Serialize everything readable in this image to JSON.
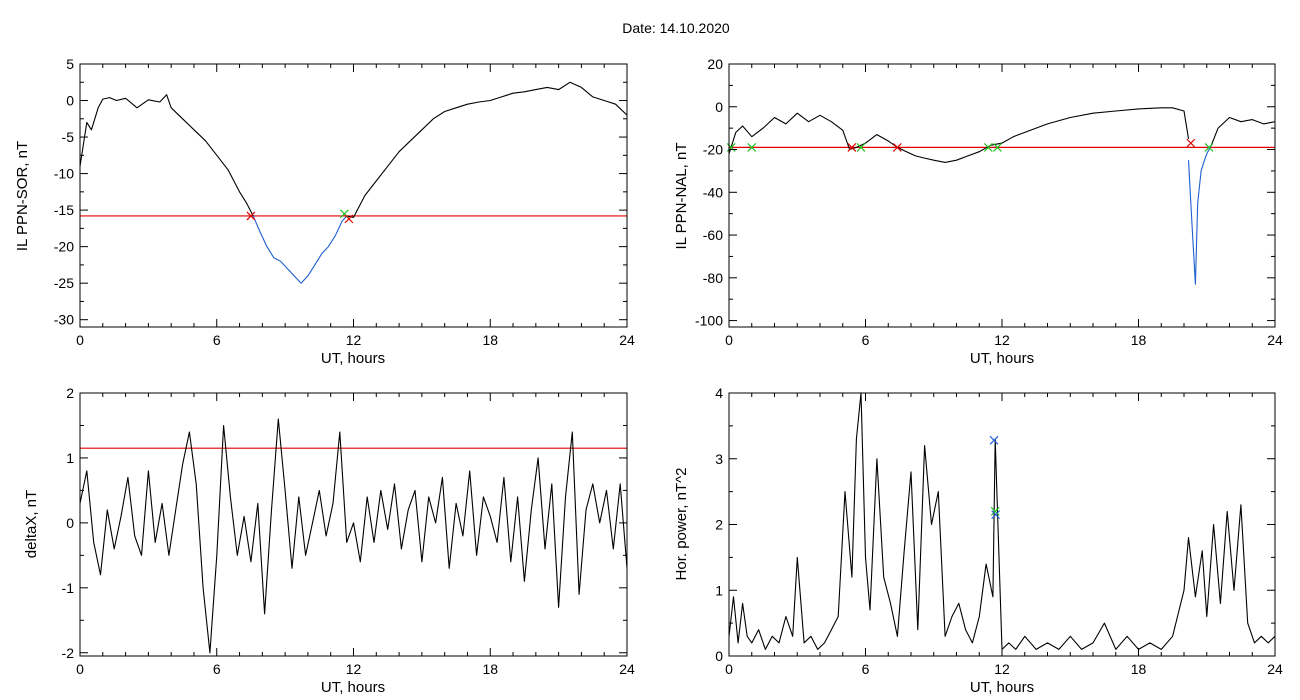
{
  "title": "Date:  14.10.2020",
  "colors": {
    "axis": "#000000",
    "signal": "#000000",
    "threshold": "#e00000",
    "event": "#1f5fd0",
    "marker_start": "#e00000",
    "marker_end": "#20c020",
    "marker_peak": "#1f5fd0"
  },
  "chart_data": [
    {
      "type": "line",
      "xlabel": "UT, hours",
      "ylabel": "IL PPN-SOR, nT",
      "xlim": [
        0,
        24
      ],
      "ylim": [
        -31,
        5
      ],
      "xticks": [
        0,
        6,
        12,
        18,
        24
      ],
      "yticks": [
        5,
        0,
        -5,
        -10,
        -15,
        -20,
        -25,
        -30
      ],
      "threshold": -15.8,
      "series": [
        {
          "style": "signal",
          "x": [
            0,
            0.15,
            0.3,
            0.5,
            0.8,
            1.0,
            1.3,
            1.6,
            2.0,
            2.5,
            3.0,
            3.5,
            3.8,
            4.0,
            4.5,
            5.0,
            5.5,
            6.0,
            6.5,
            7.0,
            7.3,
            7.6
          ],
          "y": [
            -9,
            -6,
            -3,
            -4,
            -1,
            0.2,
            0.4,
            0,
            0.3,
            -1,
            0.1,
            -0.2,
            0.8,
            -1,
            -2.5,
            -4,
            -5.5,
            -7.5,
            -9.5,
            -12.5,
            -14,
            -15.8
          ]
        },
        {
          "style": "event",
          "x": [
            7.6,
            7.9,
            8.2,
            8.5,
            8.8,
            9.1,
            9.4,
            9.7,
            10.0,
            10.3,
            10.6,
            10.9,
            11.2,
            11.5,
            11.7
          ],
          "y": [
            -15.8,
            -18,
            -20,
            -21.5,
            -22,
            -23,
            -24,
            -25,
            -24,
            -22.5,
            -21,
            -20,
            -18.5,
            -16.5,
            -15.8
          ]
        },
        {
          "style": "signal",
          "x": [
            11.7,
            12.0,
            12.5,
            13.0,
            13.5,
            14.0,
            14.5,
            15.0,
            15.5,
            16.0,
            16.5,
            17.0,
            17.5,
            18.0,
            18.5,
            19.0,
            19.5,
            20.0,
            20.5,
            21.0,
            21.5,
            22.0,
            22.5,
            23.0,
            23.5,
            24.0
          ],
          "y": [
            -15.8,
            -16,
            -13,
            -11,
            -9,
            -7,
            -5.5,
            -4,
            -2.5,
            -1.5,
            -1,
            -0.5,
            -0.2,
            0,
            0.5,
            1,
            1.2,
            1.5,
            1.8,
            1.5,
            2.5,
            1.8,
            0.5,
            0,
            -0.5,
            -2
          ]
        }
      ],
      "markers": [
        {
          "x": 7.5,
          "y": -15.8,
          "kind": "start"
        },
        {
          "x": 11.6,
          "y": -15.5,
          "kind": "end"
        },
        {
          "x": 11.8,
          "y": -16.2,
          "kind": "start"
        }
      ]
    },
    {
      "type": "line",
      "xlabel": "UT, hours",
      "ylabel": "IL PPN-NAL, nT",
      "xlim": [
        0,
        24
      ],
      "ylim": [
        -103,
        20
      ],
      "xticks": [
        0,
        6,
        12,
        18,
        24
      ],
      "yticks": [
        20,
        0,
        -20,
        -40,
        -60,
        -80,
        -100
      ],
      "threshold": -19,
      "series": [
        {
          "style": "signal",
          "x": [
            0,
            0.3,
            0.6,
            1.0,
            1.5,
            2.0,
            2.5,
            3.0,
            3.5,
            4.0,
            4.5,
            5.0,
            5.3
          ],
          "y": [
            -22,
            -12,
            -9,
            -14,
            -10,
            -5,
            -8,
            -3,
            -7,
            -4,
            -7,
            -11,
            -20
          ]
        },
        {
          "style": "signal",
          "x": [
            5.3,
            5.6,
            6.0,
            6.5,
            7.0,
            7.4,
            7.8,
            8.2,
            8.6,
            9.0,
            9.5,
            10.0,
            10.5,
            11.0,
            11.5,
            12.0,
            12.5,
            13.0,
            13.5,
            14.0,
            15.0,
            16.0,
            17.0,
            18.0,
            19.0,
            19.5,
            20.0,
            20.2
          ],
          "y": [
            -20,
            -19,
            -17,
            -13,
            -16,
            -19,
            -21,
            -23,
            -24,
            -25,
            -26,
            -25,
            -23,
            -21,
            -18,
            -17,
            -14,
            -12,
            -10,
            -8,
            -5,
            -3,
            -2,
            -1,
            -0.5,
            -0.5,
            -2,
            -15
          ]
        },
        {
          "style": "event",
          "x": [
            20.2,
            20.35,
            20.5,
            20.6,
            20.75,
            20.9,
            21.0,
            21.2
          ],
          "y": [
            -25,
            -55,
            -83,
            -45,
            -30,
            -25,
            -22,
            -18
          ]
        },
        {
          "style": "signal",
          "x": [
            21.2,
            21.5,
            22.0,
            22.5,
            23.0,
            23.5,
            24.0
          ],
          "y": [
            -18,
            -10,
            -5,
            -7,
            -6,
            -8,
            -7
          ]
        }
      ],
      "markers": [
        {
          "x": 0.1,
          "y": -19,
          "kind": "end"
        },
        {
          "x": 1.0,
          "y": -19,
          "kind": "end"
        },
        {
          "x": 5.4,
          "y": -19,
          "kind": "start"
        },
        {
          "x": 5.8,
          "y": -19,
          "kind": "end"
        },
        {
          "x": 7.4,
          "y": -19,
          "kind": "start"
        },
        {
          "x": 11.4,
          "y": -19,
          "kind": "end"
        },
        {
          "x": 11.8,
          "y": -19,
          "kind": "end"
        },
        {
          "x": 20.3,
          "y": -17,
          "kind": "start"
        },
        {
          "x": 21.1,
          "y": -19,
          "kind": "end"
        }
      ]
    },
    {
      "type": "line",
      "xlabel": "UT, hours",
      "ylabel": "deltaX, nT",
      "xlim": [
        0,
        24
      ],
      "ylim": [
        -2.05,
        2
      ],
      "xticks": [
        0,
        6,
        12,
        18,
        24
      ],
      "yticks": [
        2,
        1,
        0,
        -1,
        -2
      ],
      "threshold": 1.15,
      "series": [
        {
          "style": "signal",
          "x": [
            0,
            0.3,
            0.6,
            0.9,
            1.2,
            1.5,
            1.8,
            2.1,
            2.4,
            2.7,
            3.0,
            3.3,
            3.6,
            3.9,
            4.2,
            4.5,
            4.8,
            5.1,
            5.4,
            5.7,
            6.0,
            6.3,
            6.6,
            6.9,
            7.2,
            7.5,
            7.8,
            8.1,
            8.4,
            8.7,
            9.0,
            9.3,
            9.6,
            9.9,
            10.2,
            10.5,
            10.8,
            11.1,
            11.4,
            11.7,
            12.0,
            12.3,
            12.6,
            12.9,
            13.2,
            13.5,
            13.8,
            14.1,
            14.4,
            14.7,
            15.0,
            15.3,
            15.6,
            15.9,
            16.2,
            16.5,
            16.8,
            17.1,
            17.4,
            17.7,
            18.0,
            18.3,
            18.6,
            18.9,
            19.2,
            19.5,
            19.8,
            20.1,
            20.4,
            20.7,
            21.0,
            21.3,
            21.6,
            21.9,
            22.2,
            22.5,
            22.8,
            23.1,
            23.4,
            23.7,
            24.0
          ],
          "y": [
            0.3,
            0.8,
            -0.3,
            -0.8,
            0.2,
            -0.4,
            0.1,
            0.7,
            -0.2,
            -0.5,
            0.8,
            -0.3,
            0.3,
            -0.5,
            0.2,
            0.9,
            1.4,
            0.6,
            -1.0,
            -2.0,
            -0.5,
            1.5,
            0.4,
            -0.5,
            0.1,
            -0.6,
            0.3,
            -1.4,
            0.2,
            1.6,
            0.5,
            -0.7,
            0.4,
            -0.5,
            0.0,
            0.5,
            -0.2,
            0.3,
            1.4,
            -0.3,
            0.0,
            -0.6,
            0.4,
            -0.3,
            0.5,
            -0.1,
            0.6,
            -0.4,
            0.2,
            0.5,
            -0.6,
            0.4,
            0.0,
            0.7,
            -0.7,
            0.3,
            -0.2,
            0.8,
            -0.5,
            0.4,
            0.1,
            -0.3,
            0.7,
            -0.6,
            0.4,
            -0.9,
            0.2,
            1.0,
            -0.4,
            0.6,
            -1.3,
            0.4,
            1.4,
            -1.1,
            0.2,
            0.6,
            0.0,
            0.5,
            -0.4,
            0.6,
            -0.7
          ]
        }
      ],
      "markers": []
    },
    {
      "type": "line",
      "xlabel": "UT, hours",
      "ylabel": "Hor. power, nT^2",
      "xlim": [
        0,
        24
      ],
      "ylim": [
        0,
        4
      ],
      "xticks": [
        0,
        6,
        12,
        18,
        24
      ],
      "yticks": [
        4,
        3,
        2,
        1,
        0
      ],
      "threshold": null,
      "series": [
        {
          "style": "signal",
          "x": [
            0,
            0.2,
            0.4,
            0.6,
            0.8,
            1.0,
            1.3,
            1.6,
            1.9,
            2.2,
            2.5,
            2.8,
            3.0,
            3.3,
            3.6,
            3.9,
            4.2,
            4.5,
            4.8,
            5.1,
            5.4,
            5.6,
            5.8,
            6.0,
            6.2,
            6.5,
            6.8,
            7.1,
            7.4,
            7.7,
            8.0,
            8.3,
            8.6,
            8.9,
            9.2,
            9.5,
            9.8,
            10.1,
            10.4,
            10.7,
            11.0,
            11.3,
            11.6,
            11.7,
            11.8,
            12.0,
            12.3,
            12.6,
            13.0,
            13.5,
            14.0,
            14.5,
            15.0,
            15.5,
            16.0,
            16.5,
            17.0,
            17.5,
            18.0,
            18.5,
            19.0,
            19.5,
            20.0,
            20.2,
            20.5,
            20.8,
            21.0,
            21.3,
            21.6,
            21.9,
            22.2,
            22.5,
            22.8,
            23.1,
            23.4,
            23.7,
            24.0
          ],
          "y": [
            0.3,
            0.9,
            0.2,
            0.8,
            0.3,
            0.2,
            0.4,
            0.1,
            0.3,
            0.2,
            0.6,
            0.3,
            1.5,
            0.2,
            0.3,
            0.1,
            0.2,
            0.4,
            0.6,
            2.5,
            1.2,
            3.3,
            4.0,
            1.5,
            0.7,
            3.0,
            1.2,
            0.8,
            0.3,
            1.6,
            2.8,
            0.4,
            3.2,
            2.0,
            2.5,
            0.3,
            0.6,
            0.8,
            0.4,
            0.2,
            0.6,
            1.4,
            0.9,
            3.3,
            2.2,
            0.1,
            0.2,
            0.1,
            0.3,
            0.1,
            0.2,
            0.1,
            0.3,
            0.1,
            0.2,
            0.5,
            0.1,
            0.3,
            0.1,
            0.2,
            0.1,
            0.3,
            1.0,
            1.8,
            0.9,
            1.6,
            0.6,
            2.0,
            0.8,
            2.2,
            1.0,
            2.3,
            0.5,
            0.2,
            0.3,
            0.2,
            0.3
          ]
        }
      ],
      "markers": [
        {
          "x": 11.65,
          "y": 3.28,
          "kind": "peak"
        },
        {
          "x": 11.7,
          "y": 2.2,
          "kind": "end"
        },
        {
          "x": 11.72,
          "y": 2.15,
          "kind": "peak"
        }
      ]
    }
  ]
}
